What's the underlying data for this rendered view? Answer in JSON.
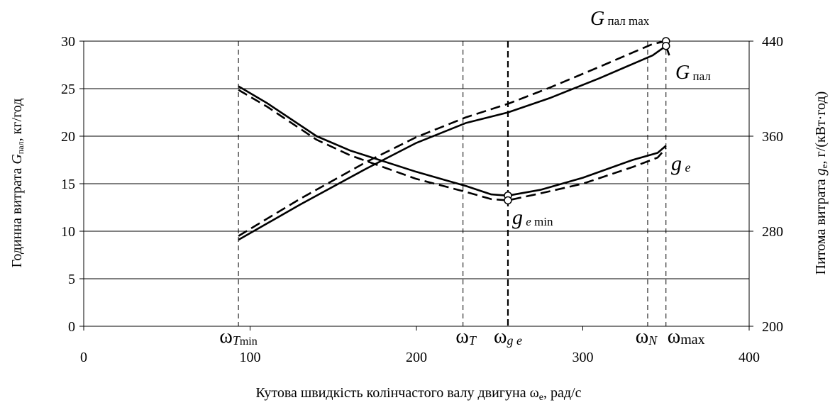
{
  "chart_data": {
    "type": "line",
    "xlabel_main": "Кутова швидкість колінчастого валу двигуна ω",
    "xlabel_sub": "e",
    "xlabel_unit": ", рад/с",
    "ylabel_left_pre": "Годинна витрата  ",
    "ylabel_left_sym": "G",
    "ylabel_left_sub": "пал",
    "ylabel_left_unit": ", кг/год",
    "ylabel_right_pre": "Питома витрата ",
    "ylabel_right_sym": "g",
    "ylabel_right_sub": "e",
    "ylabel_right_unit": ",  г/(кВт·год)",
    "xlim": [
      0,
      400
    ],
    "ylim_left": [
      0,
      30
    ],
    "ylim_right": [
      200,
      440
    ],
    "x_ticks": [
      0,
      100,
      200,
      300,
      400
    ],
    "y_ticks_left": [
      0,
      5,
      10,
      15,
      20,
      25,
      30
    ],
    "y_ticks_right": [
      200,
      280,
      360,
      440
    ],
    "grid": "horizontal",
    "series": [
      {
        "axis": "left",
        "style": "solid",
        "points": [
          [
            93,
            9.1
          ],
          [
            130,
            12.8
          ],
          [
            170,
            16.6
          ],
          [
            200,
            19.3
          ],
          [
            230,
            21.4
          ],
          [
            255,
            22.5
          ],
          [
            280,
            24.0
          ],
          [
            310,
            26.1
          ],
          [
            330,
            27.6
          ],
          [
            342,
            28.5
          ],
          [
            350,
            29.5
          ],
          [
            352,
            28.5
          ]
        ]
      },
      {
        "axis": "left",
        "style": "dashed",
        "points": [
          [
            93,
            9.5
          ],
          [
            130,
            13.4
          ],
          [
            170,
            17.3
          ],
          [
            200,
            19.9
          ],
          [
            230,
            22.0
          ],
          [
            255,
            23.4
          ],
          [
            280,
            25.1
          ],
          [
            310,
            27.3
          ],
          [
            330,
            28.8
          ],
          [
            342,
            29.7
          ],
          [
            350,
            30.0
          ]
        ]
      },
      {
        "axis": "right",
        "style": "solid",
        "points": [
          [
            93,
            402
          ],
          [
            110,
            388
          ],
          [
            140,
            360
          ],
          [
            160,
            348
          ],
          [
            200,
            330
          ],
          [
            230,
            318
          ],
          [
            245,
            311
          ],
          [
            255,
            310
          ],
          [
            275,
            315
          ],
          [
            300,
            325
          ],
          [
            330,
            340
          ],
          [
            345,
            346
          ],
          [
            350,
            352
          ]
        ]
      },
      {
        "axis": "right",
        "style": "dashed",
        "points": [
          [
            93,
            399
          ],
          [
            110,
            385
          ],
          [
            140,
            357
          ],
          [
            160,
            344
          ],
          [
            200,
            324
          ],
          [
            230,
            313
          ],
          [
            245,
            307
          ],
          [
            255,
            306
          ],
          [
            275,
            312
          ],
          [
            300,
            320
          ],
          [
            330,
            334
          ],
          [
            345,
            342
          ],
          [
            350,
            350
          ]
        ]
      }
    ],
    "markers": [
      [
        255,
        310,
        "right"
      ],
      [
        255,
        306,
        "right"
      ],
      [
        350,
        30.0,
        "left"
      ],
      [
        350,
        29.5,
        "left"
      ]
    ],
    "vlines": [
      {
        "x": 93,
        "style": "dashed"
      },
      {
        "x": 228,
        "style": "dashed"
      },
      {
        "x": 255,
        "style": "bold-dashed"
      },
      {
        "x": 339,
        "style": "dashed"
      },
      {
        "x": 350,
        "style": "dashed"
      }
    ],
    "omega_labels": [
      {
        "omega": "ω",
        "sub": "T",
        "sub2": "min"
      },
      {
        "omega": "ω",
        "sub": "T",
        "sub2": ""
      },
      {
        "omega": "ω",
        "sub": "g e",
        "sub2": ""
      },
      {
        "omega": "ω",
        "sub": "N",
        "sub2": ""
      },
      {
        "omega": "ω",
        "sub": "max",
        "sub2": ""
      }
    ],
    "annotations": {
      "gpal_max_sym": "G",
      "gpal_max_sub": " пал max",
      "gpal_sym": "G",
      "gpal_sub": " пал",
      "ge_sym": "g",
      "ge_sub": " e",
      "gemin_sym": "g",
      "gemin_sub": " e",
      "gemin_sub2": " min"
    },
    "colors": {
      "lines": "#000000",
      "grid": "#000000",
      "background": "#ffffff"
    }
  }
}
